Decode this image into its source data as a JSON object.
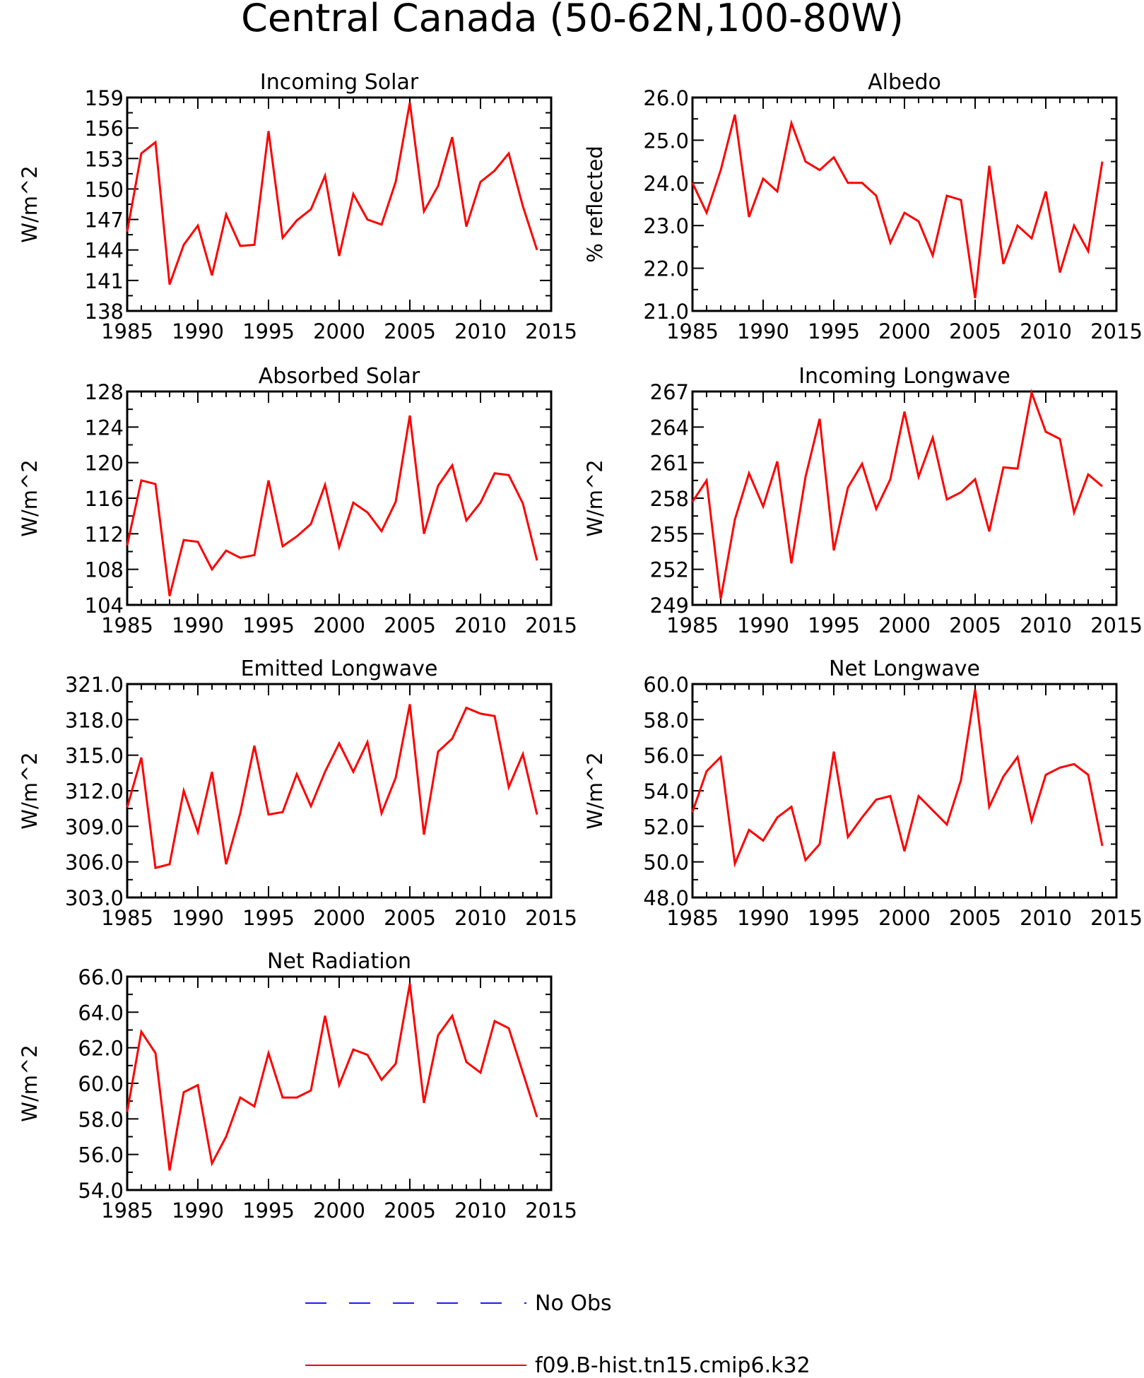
{
  "figure_title": "Central Canada (50-62N,100-80W)",
  "legend": {
    "items": [
      {
        "label": "No Obs",
        "color": "#1a1aff",
        "style": "dashed"
      },
      {
        "label": "f09.B-hist.tn15.cmip6.k32",
        "color": "#ff0000",
        "style": "solid"
      }
    ]
  },
  "chart_data": [
    {
      "type": "line",
      "title": "Incoming Solar",
      "ylabel": "W/m^2",
      "xlim": [
        1985,
        2015
      ],
      "ylim": [
        138,
        159
      ],
      "xticks": [
        1985,
        1990,
        1995,
        2000,
        2005,
        2010,
        2015
      ],
      "yticks": [
        138,
        141,
        144,
        147,
        150,
        153,
        156,
        159
      ],
      "ytick_labels": [
        "138",
        "141",
        "144",
        "147",
        "150",
        "153",
        "156",
        "159"
      ],
      "x": [
        1985,
        1986,
        1987,
        1988,
        1989,
        1990,
        1991,
        1992,
        1993,
        1994,
        1995,
        1996,
        1997,
        1998,
        1999,
        2000,
        2001,
        2002,
        2003,
        2004,
        2005,
        2006,
        2007,
        2008,
        2009,
        2010,
        2011,
        2012,
        2013,
        2014
      ],
      "series": [
        {
          "name": "f09.B-hist.tn15.cmip6.k32",
          "color": "#ff0000",
          "values": [
            145.8,
            153.5,
            154.6,
            140.6,
            144.5,
            146.4,
            141.5,
            147.5,
            144.4,
            144.5,
            155.7,
            145.2,
            146.9,
            148.0,
            151.3,
            143.4,
            149.5,
            147.0,
            146.5,
            150.7,
            158.5,
            147.8,
            150.3,
            155.1,
            146.3,
            150.7,
            151.8,
            153.5,
            148.3,
            144.0
          ]
        }
      ]
    },
    {
      "type": "line",
      "title": "Albedo",
      "ylabel": "% reflected",
      "xlim": [
        1985,
        2015
      ],
      "ylim": [
        21.0,
        26.0
      ],
      "xticks": [
        1985,
        1990,
        1995,
        2000,
        2005,
        2010,
        2015
      ],
      "yticks": [
        21,
        22,
        23,
        24,
        25,
        26
      ],
      "ytick_labels": [
        "21.0",
        "22.0",
        "23.0",
        "24.0",
        "25.0",
        "26.0"
      ],
      "x": [
        1985,
        1986,
        1987,
        1988,
        1989,
        1990,
        1991,
        1992,
        1993,
        1994,
        1995,
        1996,
        1997,
        1998,
        1999,
        2000,
        2001,
        2002,
        2003,
        2004,
        2005,
        2006,
        2007,
        2008,
        2009,
        2010,
        2011,
        2012,
        2013,
        2014
      ],
      "series": [
        {
          "name": "f09.B-hist.tn15.cmip6.k32",
          "color": "#ff0000",
          "values": [
            24.0,
            23.3,
            24.3,
            25.6,
            23.2,
            24.1,
            23.8,
            25.4,
            24.5,
            24.3,
            24.6,
            24.0,
            24.0,
            23.7,
            22.6,
            23.3,
            23.1,
            22.3,
            23.7,
            23.6,
            21.3,
            24.4,
            22.1,
            23.0,
            22.7,
            23.8,
            21.9,
            23.0,
            22.4,
            24.5
          ]
        }
      ]
    },
    {
      "type": "line",
      "title": "Absorbed Solar",
      "ylabel": "W/m^2",
      "xlim": [
        1985,
        2015
      ],
      "ylim": [
        104,
        128
      ],
      "xticks": [
        1985,
        1990,
        1995,
        2000,
        2005,
        2010,
        2015
      ],
      "yticks": [
        104,
        108,
        112,
        116,
        120,
        124,
        128
      ],
      "ytick_labels": [
        "104",
        "108",
        "112",
        "116",
        "120",
        "124",
        "128"
      ],
      "x": [
        1985,
        1986,
        1987,
        1988,
        1989,
        1990,
        1991,
        1992,
        1993,
        1994,
        1995,
        1996,
        1997,
        1998,
        1999,
        2000,
        2001,
        2002,
        2003,
        2004,
        2005,
        2006,
        2007,
        2008,
        2009,
        2010,
        2011,
        2012,
        2013,
        2014
      ],
      "series": [
        {
          "name": "f09.B-hist.tn15.cmip6.k32",
          "color": "#ff0000",
          "values": [
            110.7,
            118.0,
            117.6,
            105.0,
            111.3,
            111.1,
            108.0,
            110.1,
            109.3,
            109.6,
            118.0,
            110.6,
            111.7,
            113.1,
            117.5,
            110.5,
            115.5,
            114.4,
            112.3,
            115.6,
            125.3,
            112.0,
            117.4,
            119.7,
            113.5,
            115.5,
            118.8,
            118.6,
            115.4,
            109.0
          ]
        }
      ]
    },
    {
      "type": "line",
      "title": "Incoming Longwave",
      "ylabel": "W/m^2",
      "xlim": [
        1985,
        2015
      ],
      "ylim": [
        249,
        267
      ],
      "xticks": [
        1985,
        1990,
        1995,
        2000,
        2005,
        2010,
        2015
      ],
      "yticks": [
        249,
        252,
        255,
        258,
        261,
        264,
        267
      ],
      "ytick_labels": [
        "249",
        "252",
        "255",
        "258",
        "261",
        "264",
        "267"
      ],
      "x": [
        1985,
        1986,
        1987,
        1988,
        1989,
        1990,
        1991,
        1992,
        1993,
        1994,
        1995,
        1996,
        1997,
        1998,
        1999,
        2000,
        2001,
        2002,
        2003,
        2004,
        2005,
        2006,
        2007,
        2008,
        2009,
        2010,
        2011,
        2012,
        2013,
        2014
      ],
      "series": [
        {
          "name": "f09.B-hist.tn15.cmip6.k32",
          "color": "#ff0000",
          "values": [
            257.7,
            259.5,
            249.5,
            256.2,
            260.1,
            257.3,
            261.1,
            252.5,
            259.8,
            264.7,
            253.6,
            258.9,
            260.9,
            257.1,
            259.6,
            265.3,
            259.8,
            263.1,
            257.9,
            258.5,
            259.6,
            255.2,
            260.6,
            260.5,
            266.9,
            263.6,
            263.0,
            256.8,
            260.0,
            259.0
          ]
        }
      ]
    },
    {
      "type": "line",
      "title": "Emitted Longwave",
      "ylabel": "W/m^2",
      "xlim": [
        1985,
        2015
      ],
      "ylim": [
        303,
        321
      ],
      "xticks": [
        1985,
        1990,
        1995,
        2000,
        2005,
        2010,
        2015
      ],
      "yticks": [
        303,
        306,
        309,
        312,
        315,
        318,
        321
      ],
      "ytick_labels": [
        "303.0",
        "306.0",
        "309.0",
        "312.0",
        "315.0",
        "318.0",
        "321.0"
      ],
      "x": [
        1985,
        1986,
        1987,
        1988,
        1989,
        1990,
        1991,
        1992,
        1993,
        1994,
        1995,
        1996,
        1997,
        1998,
        1999,
        2000,
        2001,
        2002,
        2003,
        2004,
        2005,
        2006,
        2007,
        2008,
        2009,
        2010,
        2011,
        2012,
        2013,
        2014
      ],
      "series": [
        {
          "name": "f09.B-hist.tn15.cmip6.k32",
          "color": "#ff0000",
          "values": [
            310.6,
            314.8,
            305.5,
            305.8,
            312.0,
            308.5,
            313.6,
            305.8,
            310.1,
            315.8,
            310.0,
            310.2,
            313.4,
            310.7,
            313.6,
            316.0,
            313.6,
            316.1,
            310.1,
            313.1,
            319.3,
            308.3,
            315.3,
            316.4,
            319.0,
            318.5,
            318.3,
            312.3,
            315.1,
            310.0
          ]
        }
      ]
    },
    {
      "type": "line",
      "title": "Net Longwave",
      "ylabel": "W/m^2",
      "xlim": [
        1985,
        2015
      ],
      "ylim": [
        48,
        60
      ],
      "xticks": [
        1985,
        1990,
        1995,
        2000,
        2005,
        2010,
        2015
      ],
      "yticks": [
        48,
        50,
        52,
        54,
        56,
        58,
        60
      ],
      "ytick_labels": [
        "48.0",
        "50.0",
        "52.0",
        "54.0",
        "56.0",
        "58.0",
        "60.0"
      ],
      "x": [
        1985,
        1986,
        1987,
        1988,
        1989,
        1990,
        1991,
        1992,
        1993,
        1994,
        1995,
        1996,
        1997,
        1998,
        1999,
        2000,
        2001,
        2002,
        2003,
        2004,
        2005,
        2006,
        2007,
        2008,
        2009,
        2010,
        2011,
        2012,
        2013,
        2014
      ],
      "series": [
        {
          "name": "f09.B-hist.tn15.cmip6.k32",
          "color": "#ff0000",
          "values": [
            52.8,
            55.1,
            55.9,
            49.9,
            51.8,
            51.2,
            52.5,
            53.1,
            50.1,
            51.0,
            56.2,
            51.4,
            52.5,
            53.5,
            53.7,
            50.6,
            53.7,
            52.9,
            52.1,
            54.6,
            59.7,
            53.1,
            54.8,
            55.9,
            52.3,
            54.9,
            55.3,
            55.5,
            54.9,
            50.9
          ]
        }
      ]
    },
    {
      "type": "line",
      "title": "Net Radiation",
      "ylabel": "W/m^2",
      "xlim": [
        1985,
        2015
      ],
      "ylim": [
        54,
        66
      ],
      "xticks": [
        1985,
        1990,
        1995,
        2000,
        2005,
        2010,
        2015
      ],
      "yticks": [
        54,
        56,
        58,
        60,
        62,
        64,
        66
      ],
      "ytick_labels": [
        "54.0",
        "56.0",
        "58.0",
        "60.0",
        "62.0",
        "64.0",
        "66.0"
      ],
      "x": [
        1985,
        1986,
        1987,
        1988,
        1989,
        1990,
        1991,
        1992,
        1993,
        1994,
        1995,
        1996,
        1997,
        1998,
        1999,
        2000,
        2001,
        2002,
        2003,
        2004,
        2005,
        2006,
        2007,
        2008,
        2009,
        2010,
        2011,
        2012,
        2013,
        2014
      ],
      "series": [
        {
          "name": "f09.B-hist.tn15.cmip6.k32",
          "color": "#ff0000",
          "values": [
            58.4,
            62.9,
            61.7,
            55.1,
            59.5,
            59.9,
            55.5,
            57.0,
            59.2,
            58.7,
            61.7,
            59.2,
            59.2,
            59.6,
            63.8,
            59.9,
            61.9,
            61.6,
            60.2,
            61.1,
            65.6,
            58.9,
            62.7,
            63.8,
            61.2,
            60.6,
            63.5,
            63.1,
            60.6,
            58.1
          ]
        }
      ]
    }
  ]
}
